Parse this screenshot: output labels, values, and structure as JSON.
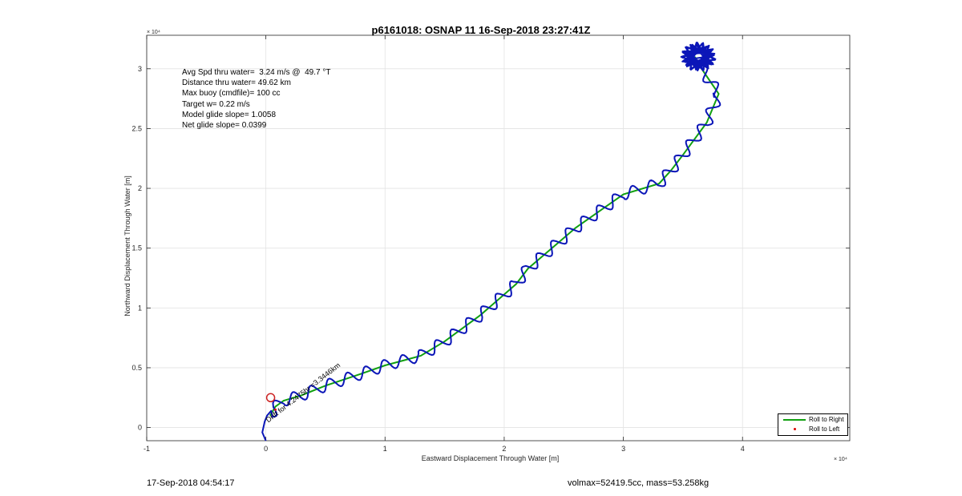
{
  "title": "p6161018: OSNAP 11 16-Sep-2018 23:27:41Z",
  "footer_left": "17-Sep-2018 04:54:17",
  "footer_right": "volmax=52419.5cc, mass=53.258kg",
  "stats": [
    "Avg Spd thru water=  3.24 m/s @  49.7 °T",
    "Distance thru water= 49.62 km",
    "Max buoy (cmdfile)= 100 cc",
    "Target w= 0.22 m/s",
    "Model glide slope= 1.0058",
    "Net glide slope= 0.0399"
  ],
  "annotation": "Drift for 4.2475hr =3.3446km",
  "chart_data": {
    "type": "line",
    "title": "p6161018: OSNAP 11 16-Sep-2018 23:27:41Z",
    "xlabel": "Eastward Displacement Through Water [m]",
    "ylabel": "Northward Displacement Through Water [m]",
    "x_exponent": "× 10⁴",
    "y_exponent": "× 10⁴",
    "xlim": [
      -10000,
      49000
    ],
    "ylim": [
      -1100,
      32800
    ],
    "xticks": [
      -10000,
      0,
      10000,
      20000,
      30000,
      40000
    ],
    "xticklabels": [
      "-1",
      "0",
      "1",
      "2",
      "3",
      "4"
    ],
    "yticks": [
      0,
      5000,
      10000,
      15000,
      20000,
      25000,
      30000
    ],
    "yticklabels": [
      "0",
      "0.5",
      "1",
      "1.5",
      "2",
      "2.5",
      "3"
    ],
    "grid": true,
    "legend": {
      "placement": "bottom-right",
      "entries": [
        "Roll to Right",
        "Roll to Left"
      ]
    },
    "colors": {
      "track": "#0b16b8",
      "roll_right": "#11a011",
      "roll_left": "#dd1111",
      "start_marker": "#cc2222"
    },
    "series": [
      {
        "name": "Roll to Right",
        "points": [
          [
            350,
            1000
          ],
          [
            800,
            1750
          ],
          [
            1500,
            2250
          ],
          [
            3000,
            2700
          ],
          [
            5000,
            3500
          ],
          [
            8000,
            4500
          ],
          [
            10000,
            5200
          ],
          [
            13000,
            6000
          ],
          [
            15000,
            7200
          ],
          [
            18000,
            9400
          ],
          [
            21000,
            12000
          ],
          [
            22000,
            13300
          ],
          [
            24000,
            15000
          ],
          [
            26000,
            16700
          ],
          [
            28000,
            18100
          ],
          [
            30000,
            19500
          ],
          [
            33000,
            20400
          ],
          [
            34000,
            21500
          ],
          [
            35000,
            22800
          ],
          [
            37000,
            25500
          ],
          [
            38000,
            27900
          ],
          [
            36500,
            30100
          ],
          [
            36000,
            31000
          ]
        ]
      },
      {
        "name": "Roll to Left",
        "points": [
          [
            800,
            1500
          ]
        ]
      }
    ],
    "start_marker": [
      400,
      2500
    ]
  }
}
